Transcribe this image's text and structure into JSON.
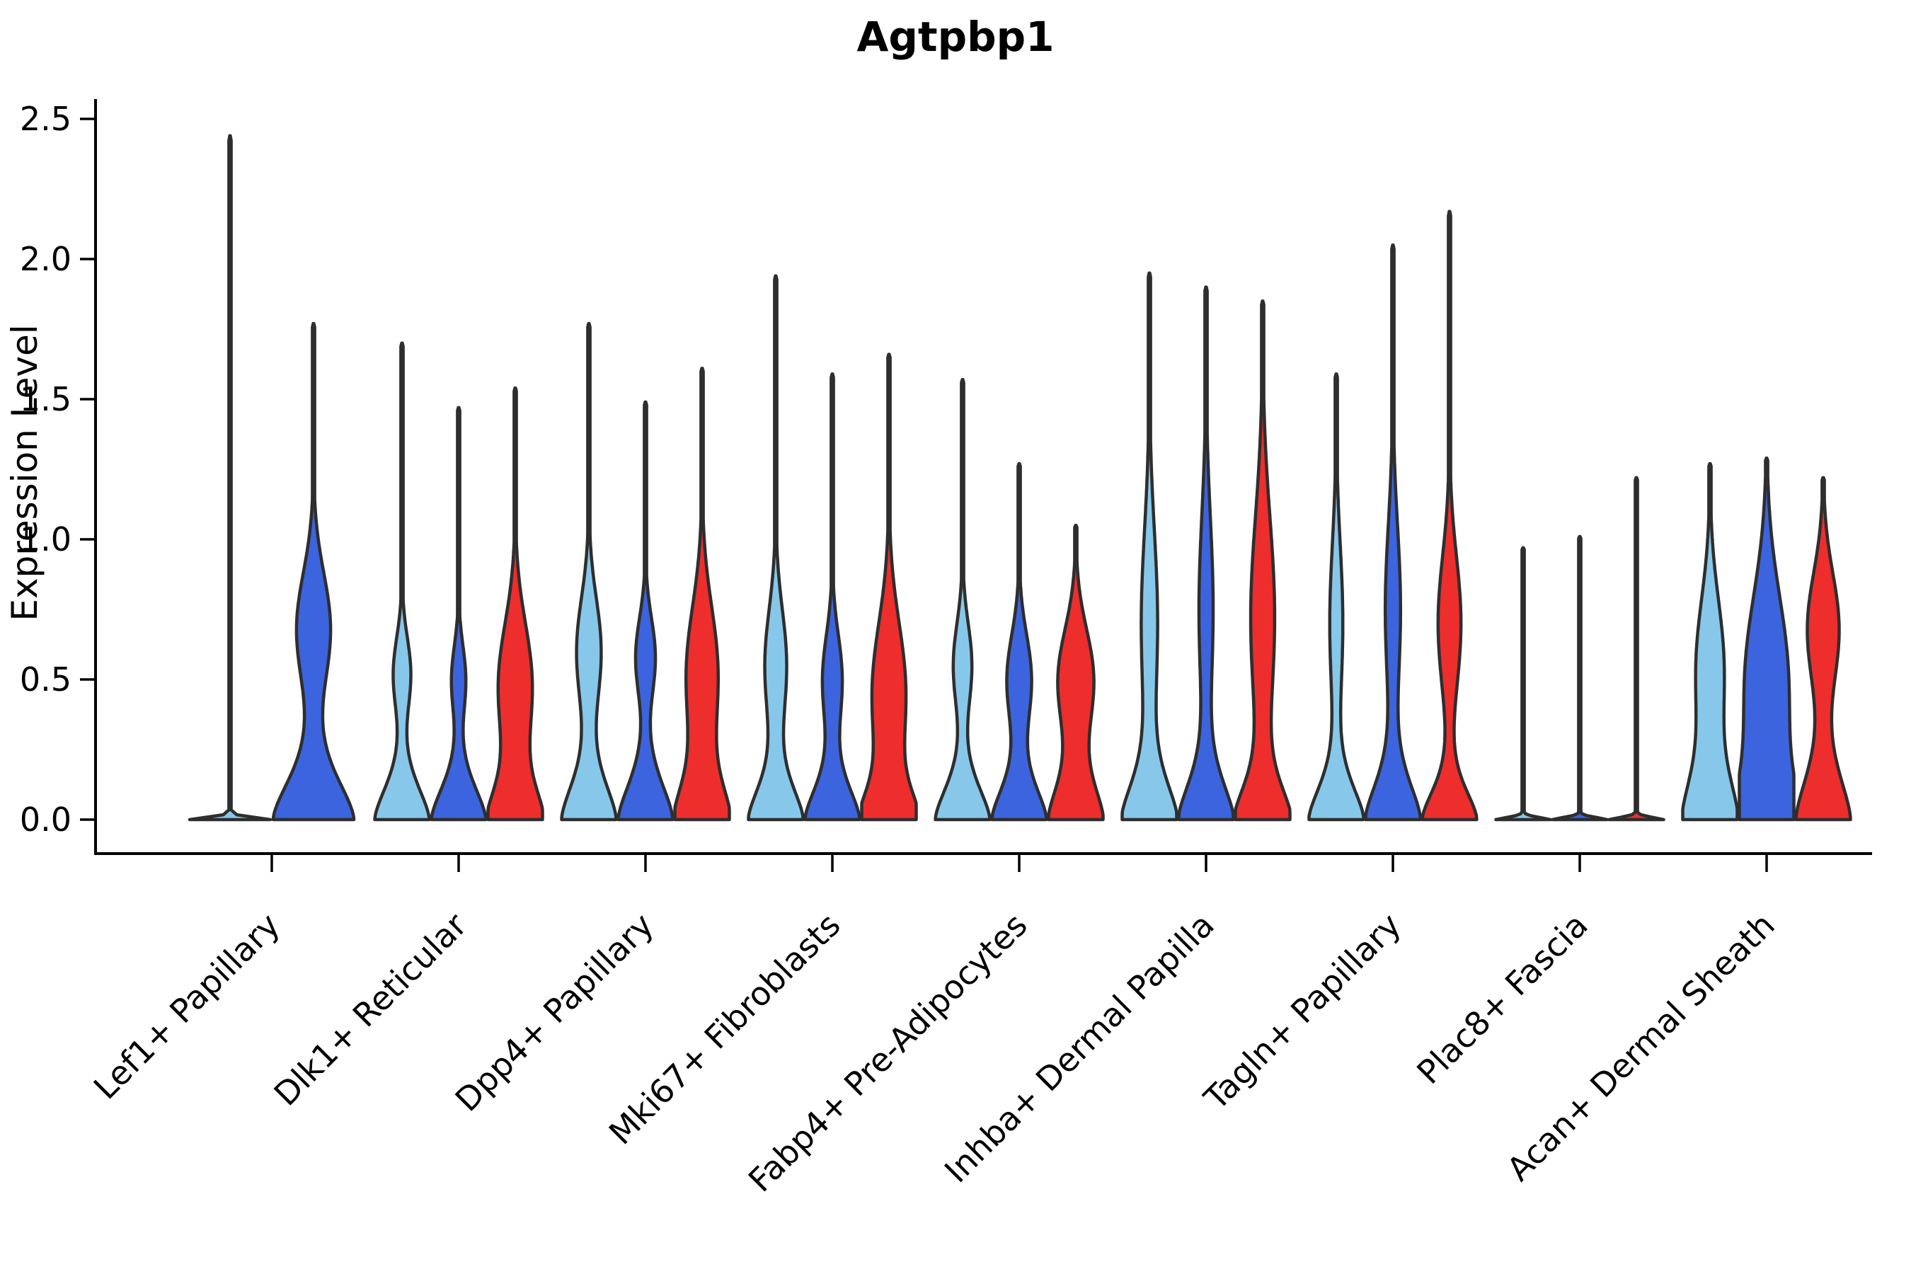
{
  "chart_data": {
    "type": "violin",
    "title": "Agtpbp1",
    "xlabel": "",
    "ylabel": "Expression Level",
    "ylim": [
      0,
      2.6
    ],
    "yticks": [
      0.0,
      0.5,
      1.0,
      1.5,
      2.0,
      2.5
    ],
    "ytick_labels": [
      "0.0",
      "0.5",
      "1.0",
      "1.5",
      "2.0",
      "2.5"
    ],
    "grid": false,
    "legend": "none",
    "outline_color": "#2E2E2E",
    "axis_color": "#000000",
    "categories": [
      "Lef1+ Papillary",
      "Dlk1+ Reticular",
      "Dpp4+ Papillary",
      "Mki67+ Fibroblasts",
      "Fabp4+ Pre-Adipocytes",
      "Inhba+ Dermal Papilla",
      "Tagln+ Papillary",
      "Plac8+ Fascia",
      "Acan+ Dermal Sheath"
    ],
    "series": [
      {
        "name": "sample-light-blue",
        "color": "#87C8EA",
        "max_expression": [
          2.44,
          1.7,
          1.77,
          1.94,
          1.57,
          1.95,
          1.59,
          0.97,
          1.27
        ]
      },
      {
        "name": "sample-royal-blue",
        "color": "#3C64DE",
        "max_expression": [
          1.77,
          1.47,
          1.49,
          1.59,
          1.27,
          1.9,
          2.05,
          1.01,
          1.29
        ]
      },
      {
        "name": "sample-red",
        "color": "#EE2D2D",
        "max_expression": [
          null,
          1.54,
          1.61,
          1.66,
          1.05,
          1.85,
          2.17,
          1.22,
          1.22
        ]
      }
    ],
    "violin_shapes": [
      {
        "category": "Lef1+ Papillary",
        "half_width": 57,
        "violins": [
          {
            "series": 0,
            "offset": -59,
            "max": 2.44,
            "bell_h": 0.012,
            "bulge_center": 0,
            "bulge_sigma": 1,
            "bulge_amp": 0
          },
          {
            "series": 1,
            "offset": 59,
            "max": 1.77,
            "bell_h": 0.22,
            "bulge_center": 0.68,
            "bulge_sigma": 0.2,
            "bulge_amp": 0.42
          }
        ]
      },
      {
        "category": "Dlk1+ Reticular",
        "half_width": 38.5,
        "violins": [
          {
            "series": 0,
            "offset": -80,
            "max": 1.7,
            "bell_h": 0.18,
            "bulge_center": 0.52,
            "bulge_sigma": 0.13,
            "bulge_amp": 0.32
          },
          {
            "series": 1,
            "offset": 0,
            "max": 1.47,
            "bell_h": 0.18,
            "bulge_center": 0.5,
            "bulge_sigma": 0.12,
            "bulge_amp": 0.26
          },
          {
            "series": 2,
            "offset": 80,
            "max": 1.54,
            "bell_h": 0.18,
            "bulge_center": 0.48,
            "bulge_sigma": 0.22,
            "bulge_amp": 0.62
          }
        ]
      },
      {
        "category": "Dpp4+ Papillary",
        "half_width": 38.5,
        "violins": [
          {
            "series": 0,
            "offset": -80,
            "max": 1.77,
            "bell_h": 0.2,
            "bulge_center": 0.6,
            "bulge_sigma": 0.19,
            "bulge_amp": 0.45
          },
          {
            "series": 1,
            "offset": 0,
            "max": 1.49,
            "bell_h": 0.2,
            "bulge_center": 0.58,
            "bulge_sigma": 0.14,
            "bulge_amp": 0.36
          },
          {
            "series": 2,
            "offset": 80,
            "max": 1.61,
            "bell_h": 0.2,
            "bulge_center": 0.52,
            "bulge_sigma": 0.24,
            "bulge_amp": 0.58
          }
        ]
      },
      {
        "category": "Mki67+ Fibroblasts",
        "half_width": 38.5,
        "violins": [
          {
            "series": 0,
            "offset": -80,
            "max": 1.94,
            "bell_h": 0.18,
            "bulge_center": 0.55,
            "bulge_sigma": 0.2,
            "bulge_amp": 0.4
          },
          {
            "series": 1,
            "offset": 0,
            "max": 1.59,
            "bell_h": 0.18,
            "bulge_center": 0.5,
            "bulge_sigma": 0.16,
            "bulge_amp": 0.36
          },
          {
            "series": 2,
            "offset": 80,
            "max": 1.66,
            "bell_h": 0.16,
            "bulge_center": 0.45,
            "bulge_sigma": 0.25,
            "bulge_amp": 0.62
          }
        ]
      },
      {
        "category": "Fabp4+ Pre-Adipocytes",
        "half_width": 38.5,
        "violins": [
          {
            "series": 0,
            "offset": -80,
            "max": 1.57,
            "bell_h": 0.18,
            "bulge_center": 0.55,
            "bulge_sigma": 0.15,
            "bulge_amp": 0.34
          },
          {
            "series": 1,
            "offset": 0,
            "max": 1.27,
            "bell_h": 0.18,
            "bulge_center": 0.5,
            "bulge_sigma": 0.16,
            "bulge_amp": 0.45
          },
          {
            "series": 2,
            "offset": 80,
            "max": 1.05,
            "bell_h": 0.2,
            "bulge_center": 0.5,
            "bulge_sigma": 0.18,
            "bulge_amp": 0.65
          }
        ]
      },
      {
        "category": "Inhba+ Dermal Papilla",
        "half_width": 38.5,
        "violins": [
          {
            "series": 0,
            "offset": -80,
            "max": 1.95,
            "bell_h": 0.2,
            "bulge_center": 0.7,
            "bulge_sigma": 0.33,
            "bulge_amp": 0.3
          },
          {
            "series": 1,
            "offset": 0,
            "max": 1.9,
            "bell_h": 0.2,
            "bulge_center": 0.75,
            "bulge_sigma": 0.33,
            "bulge_amp": 0.26
          },
          {
            "series": 2,
            "offset": 80,
            "max": 1.85,
            "bell_h": 0.18,
            "bulge_center": 0.72,
            "bulge_sigma": 0.36,
            "bulge_amp": 0.44
          }
        ]
      },
      {
        "category": "Tagln+ Papillary",
        "half_width": 38.5,
        "violins": [
          {
            "series": 0,
            "offset": -80,
            "max": 1.59,
            "bell_h": 0.18,
            "bulge_center": 0.7,
            "bulge_sigma": 0.28,
            "bulge_amp": 0.24
          },
          {
            "series": 1,
            "offset": 0,
            "max": 2.05,
            "bell_h": 0.2,
            "bulge_center": 0.75,
            "bulge_sigma": 0.3,
            "bulge_amp": 0.28
          },
          {
            "series": 2,
            "offset": 80,
            "max": 2.17,
            "bell_h": 0.16,
            "bulge_center": 0.7,
            "bulge_sigma": 0.24,
            "bulge_amp": 0.42
          }
        ]
      },
      {
        "category": "Plac8+ Fascia",
        "half_width": 38.5,
        "violins": [
          {
            "series": 0,
            "offset": -80,
            "max": 0.97,
            "bell_h": 0.012,
            "bulge_center": 0,
            "bulge_sigma": 1,
            "bulge_amp": 0
          },
          {
            "series": 1,
            "offset": 0,
            "max": 1.01,
            "bell_h": 0.012,
            "bulge_center": 0,
            "bulge_sigma": 1,
            "bulge_amp": 0
          },
          {
            "series": 2,
            "offset": 80,
            "max": 1.22,
            "bell_h": 0.012,
            "bulge_center": 0,
            "bulge_sigma": 1,
            "bulge_amp": 0
          }
        ]
      },
      {
        "category": "Acan+ Dermal Sheath",
        "half_width": 38.5,
        "violins": [
          {
            "series": 0,
            "offset": -80,
            "max": 1.27,
            "bell_h": 0.24,
            "bulge_center": 0.55,
            "bulge_sigma": 0.24,
            "bulge_amp": 0.5
          },
          {
            "series": 1,
            "offset": 0,
            "max": 1.29,
            "bell_h": 0.24,
            "bulge_center": 0.5,
            "bulge_sigma": 0.3,
            "bulge_amp": 0.78
          },
          {
            "series": 2,
            "offset": 80,
            "max": 1.22,
            "bell_h": 0.24,
            "bulge_center": 0.68,
            "bulge_sigma": 0.2,
            "bulge_amp": 0.58
          }
        ]
      }
    ]
  }
}
